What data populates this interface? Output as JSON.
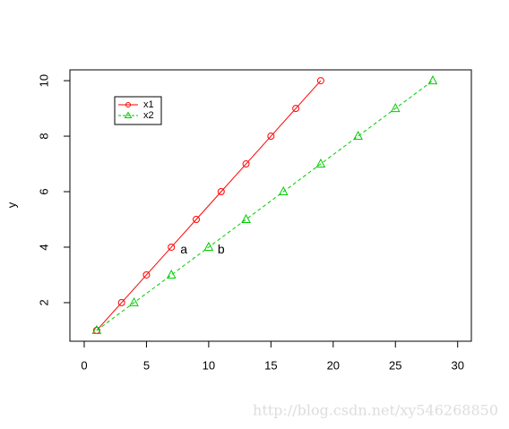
{
  "chart_data": {
    "type": "line",
    "ylabel": "y",
    "xlim": [
      -1.15,
      31.1
    ],
    "ylim": [
      0.61,
      10.39
    ],
    "xticks": [
      0,
      5,
      10,
      15,
      20,
      25,
      30
    ],
    "yticks": [
      2,
      4,
      6,
      8,
      10
    ],
    "series": [
      {
        "name": "x1",
        "color": "#ff0000",
        "marker": "circle",
        "dash": false,
        "x": [
          1,
          3,
          5,
          7,
          9,
          11,
          13,
          15,
          17,
          19
        ],
        "values": [
          1,
          2,
          3,
          4,
          5,
          6,
          7,
          8,
          9,
          10
        ]
      },
      {
        "name": "x2",
        "color": "#00cc00",
        "marker": "triangle",
        "dash": true,
        "x": [
          1,
          4,
          7,
          10,
          13,
          16,
          19,
          22,
          25,
          28
        ],
        "values": [
          1,
          2,
          3,
          4,
          5,
          6,
          7,
          8,
          9,
          10
        ]
      }
    ],
    "annotations": [
      {
        "text": "a",
        "x": 8,
        "y": 3.9
      },
      {
        "text": "b",
        "x": 11,
        "y": 3.9
      }
    ],
    "legend": "upper left",
    "watermark": "http://blog.csdn.net/xy546268850"
  }
}
